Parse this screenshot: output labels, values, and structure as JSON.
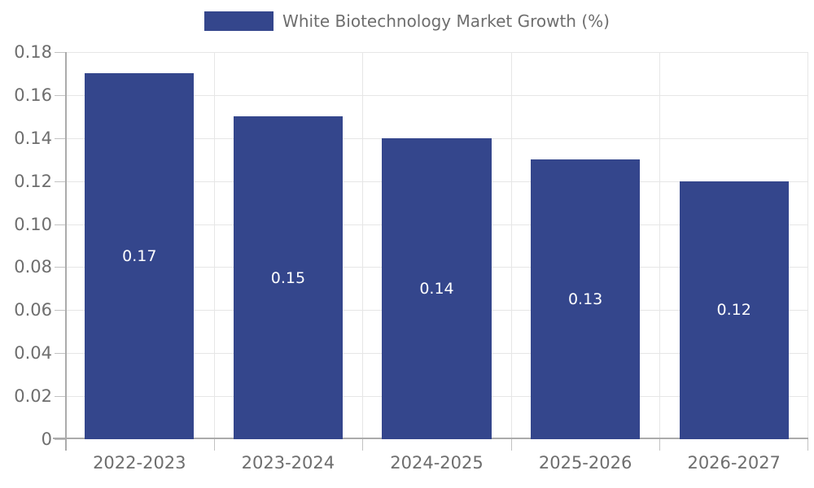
{
  "chart_data": {
    "type": "bar",
    "title": "",
    "legend": {
      "label": "White Biotechnology Market Growth (%)",
      "position": "top-center"
    },
    "categories": [
      "2022-2023",
      "2023-2024",
      "2024-2025",
      "2025-2026",
      "2026-2027"
    ],
    "values": [
      0.17,
      0.15,
      0.14,
      0.13,
      0.12
    ],
    "bar_labels": [
      "0.17",
      "0.15",
      "0.14",
      "0.13",
      "0.12"
    ],
    "xlabel": "",
    "ylabel": "",
    "ylim": [
      0,
      0.18
    ],
    "ytick_step": 0.02,
    "ytick_labels": [
      "0",
      "0.02",
      "0.04",
      "0.06",
      "0.08",
      "0.10",
      "0.12",
      "0.14",
      "0.16",
      "0.18"
    ],
    "grid": true,
    "grid_vertical": true,
    "bar_band_fraction": 0.735,
    "colors": {
      "bar": "#34468c",
      "bar_label": "#ffffff",
      "grid": "#e6e6e6",
      "axis": "#ababab",
      "tick": "#c2c2c2",
      "tick_label": "#6e6e6e",
      "legend_text": "#6e6e6e",
      "background": "#ffffff"
    }
  }
}
